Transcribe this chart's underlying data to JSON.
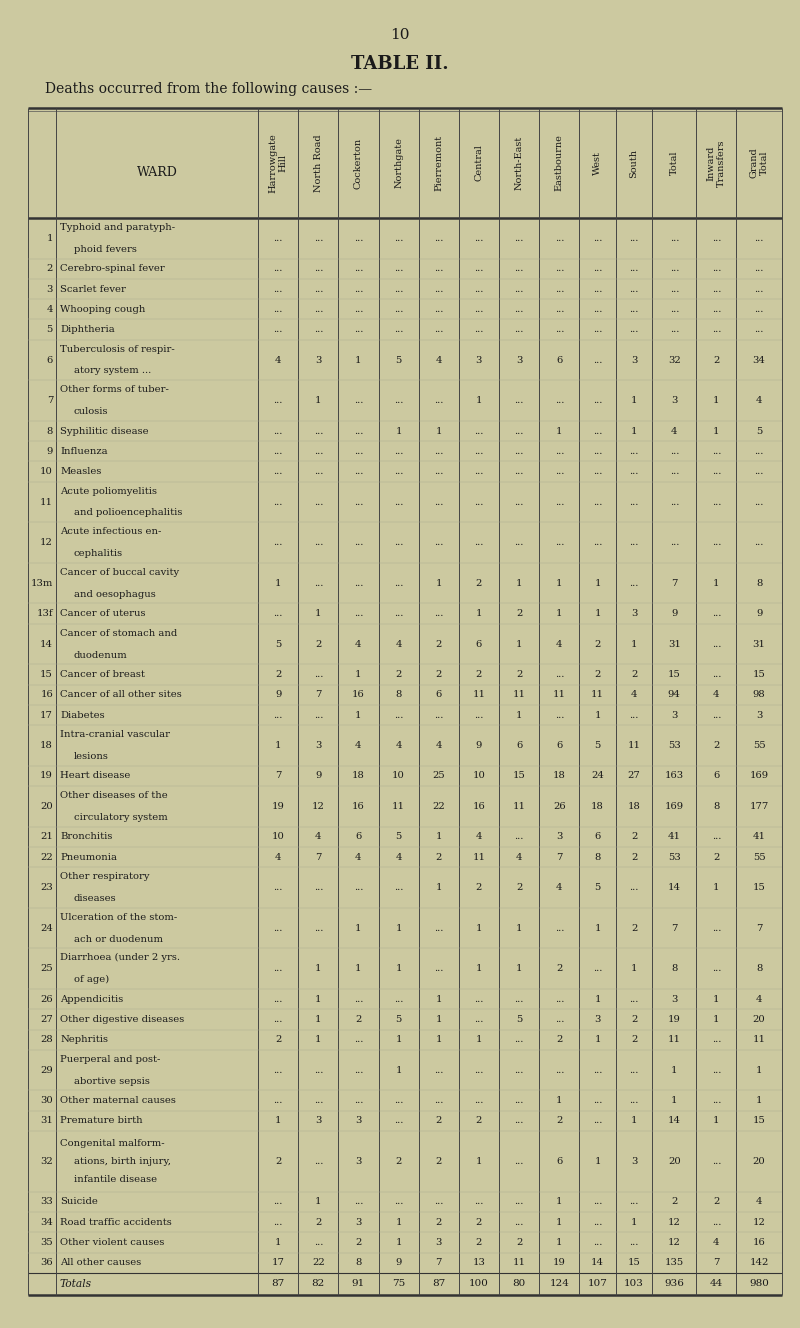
{
  "page_number": "10",
  "title": "TABLE II.",
  "subtitle": "Deaths occurred from the following causes :—",
  "bg_color": "#ccc9a0",
  "text_color": "#1a1a1a",
  "col_headers": [
    "Harrowgate\nHill",
    "North Road",
    "Cockerton",
    "Northgate",
    "Pierremont",
    "Central",
    "North-East",
    "Eastbourne",
    "West",
    "South",
    "Total",
    "Inward\nTransfers",
    "Grand\nTotal"
  ],
  "rows": [
    {
      "num": "1",
      "label1": "Typhoid and paratyph-",
      "label2": "phoid fevers",
      "label3": "",
      "indent2": true,
      "vals": [
        "...",
        "...",
        "...",
        "...",
        "...",
        "...",
        "...",
        "...",
        "...",
        "...",
        "...",
        "...",
        "..."
      ]
    },
    {
      "num": "2",
      "label1": "Cerebro-spinal fever",
      "label2": "",
      "label3": "",
      "indent2": false,
      "vals": [
        "...",
        "...",
        "...",
        "...",
        "...",
        "...",
        "...",
        "...",
        "...",
        "...",
        "...",
        "...",
        "..."
      ]
    },
    {
      "num": "3",
      "label1": "Scarlet fever",
      "label2": "",
      "label3": "",
      "indent2": false,
      "vals": [
        "...",
        "...",
        "...",
        "...",
        "...",
        "...",
        "...",
        "...",
        "...",
        "...",
        "...",
        "...",
        "..."
      ]
    },
    {
      "num": "4",
      "label1": "Whooping cough",
      "label2": "",
      "label3": "",
      "indent2": false,
      "vals": [
        "...",
        "...",
        "...",
        "...",
        "...",
        "...",
        "...",
        "...",
        "...",
        "...",
        "...",
        "...",
        "..."
      ]
    },
    {
      "num": "5",
      "label1": "Diphtheria",
      "label2": "",
      "label3": "",
      "indent2": false,
      "vals": [
        "...",
        "...",
        "...",
        "...",
        "...",
        "...",
        "...",
        "...",
        "...",
        "...",
        "...",
        "...",
        "..."
      ]
    },
    {
      "num": "6",
      "label1": "Tuberculosis of respir-",
      "label2": "atory system ...",
      "label3": "",
      "indent2": true,
      "vals": [
        "4",
        "3",
        "1",
        "5",
        "4",
        "3",
        "3",
        "6",
        "...",
        "3",
        "32",
        "2",
        "34"
      ]
    },
    {
      "num": "7",
      "label1": "Other forms of tuber-",
      "label2": "culosis",
      "label3": "",
      "indent2": true,
      "vals": [
        "...",
        "1",
        "...",
        "...",
        "...",
        "1",
        "...",
        "...",
        "...",
        "1",
        "3",
        "1",
        "4"
      ]
    },
    {
      "num": "8",
      "label1": "Syphilitic disease",
      "label2": "",
      "label3": "",
      "indent2": false,
      "vals": [
        "...",
        "...",
        "...",
        "1",
        "1",
        "...",
        "...",
        "1",
        "...",
        "1",
        "4",
        "1",
        "5"
      ]
    },
    {
      "num": "9",
      "label1": "Influenza",
      "label2": "",
      "label3": "",
      "indent2": false,
      "vals": [
        "...",
        "...",
        "...",
        "...",
        "...",
        "...",
        "...",
        "...",
        "...",
        "...",
        "...",
        "...",
        "..."
      ]
    },
    {
      "num": "10",
      "label1": "Measles",
      "label2": "",
      "label3": "",
      "indent2": false,
      "vals": [
        "...",
        "...",
        "...",
        "...",
        "...",
        "...",
        "...",
        "...",
        "...",
        "...",
        "...",
        "...",
        "..."
      ]
    },
    {
      "num": "11",
      "label1": "Acute poliomyelitis",
      "label2": "and polioencephalitis",
      "label3": "",
      "indent2": true,
      "vals": [
        "...",
        "...",
        "...",
        "...",
        "...",
        "...",
        "...",
        "...",
        "...",
        "...",
        "...",
        "...",
        "..."
      ]
    },
    {
      "num": "12",
      "label1": "Acute infectious en-",
      "label2": "cephalitis",
      "label3": "",
      "indent2": true,
      "vals": [
        "...",
        "...",
        "...",
        "...",
        "...",
        "...",
        "...",
        "...",
        "...",
        "...",
        "...",
        "...",
        "..."
      ]
    },
    {
      "num": "13m",
      "label1": "Cancer of buccal cavity",
      "label2": "and oesophagus",
      "label3": "",
      "indent2": true,
      "vals": [
        "1",
        "...",
        "...",
        "...",
        "1",
        "2",
        "1",
        "1",
        "1",
        "...",
        "7",
        "1",
        "8"
      ]
    },
    {
      "num": "13f",
      "label1": "Cancer of uterus",
      "label2": "",
      "label3": "",
      "indent2": false,
      "vals": [
        "...",
        "1",
        "...",
        "...",
        "...",
        "1",
        "2",
        "1",
        "1",
        "3",
        "9",
        "...",
        "9"
      ]
    },
    {
      "num": "14",
      "label1": "Cancer of stomach and",
      "label2": "duodenum",
      "label3": "",
      "indent2": true,
      "vals": [
        "5",
        "2",
        "4",
        "4",
        "2",
        "6",
        "1",
        "4",
        "2",
        "1",
        "31",
        "...",
        "31"
      ]
    },
    {
      "num": "15",
      "label1": "Cancer of breast",
      "label2": "",
      "label3": "",
      "indent2": false,
      "vals": [
        "2",
        "...",
        "1",
        "2",
        "2",
        "2",
        "2",
        "...",
        "2",
        "2",
        "15",
        "...",
        "15"
      ]
    },
    {
      "num": "16",
      "label1": "Cancer of all other sites",
      "label2": "",
      "label3": "",
      "indent2": false,
      "vals": [
        "9",
        "7",
        "16",
        "8",
        "6",
        "11",
        "11",
        "11",
        "11",
        "4",
        "94",
        "4",
        "98"
      ]
    },
    {
      "num": "17",
      "label1": "Diabetes",
      "label2": "",
      "label3": "",
      "indent2": false,
      "vals": [
        "...",
        "...",
        "1",
        "...",
        "...",
        "...",
        "1",
        "...",
        "1",
        "...",
        "3",
        "...",
        "3"
      ]
    },
    {
      "num": "18",
      "label1": "Intra-cranial vascular",
      "label2": "lesions",
      "label3": "",
      "indent2": true,
      "vals": [
        "1",
        "3",
        "4",
        "4",
        "4",
        "9",
        "6",
        "6",
        "5",
        "11",
        "53",
        "2",
        "55"
      ]
    },
    {
      "num": "19",
      "label1": "Heart disease",
      "label2": "",
      "label3": "",
      "indent2": false,
      "vals": [
        "7",
        "9",
        "18",
        "10",
        "25",
        "10",
        "15",
        "18",
        "24",
        "27",
        "163",
        "6",
        "169"
      ]
    },
    {
      "num": "20",
      "label1": "Other diseases of the",
      "label2": "circulatory system",
      "label3": "",
      "indent2": true,
      "vals": [
        "19",
        "12",
        "16",
        "11",
        "22",
        "16",
        "11",
        "26",
        "18",
        "18",
        "169",
        "8",
        "177"
      ]
    },
    {
      "num": "21",
      "label1": "Bronchitis",
      "label2": "",
      "label3": "",
      "indent2": false,
      "vals": [
        "10",
        "4",
        "6",
        "5",
        "1",
        "4",
        "...",
        "3",
        "6",
        "2",
        "41",
        "...",
        "41"
      ]
    },
    {
      "num": "22",
      "label1": "Pneumonia",
      "label2": "",
      "label3": "",
      "indent2": false,
      "vals": [
        "4",
        "7",
        "4",
        "4",
        "2",
        "11",
        "4",
        "7",
        "8",
        "2",
        "53",
        "2",
        "55"
      ]
    },
    {
      "num": "23",
      "label1": "Other respiratory",
      "label2": "diseases",
      "label3": "",
      "indent2": true,
      "vals": [
        "...",
        "...",
        "...",
        "...",
        "1",
        "2",
        "2",
        "4",
        "5",
        "...",
        "14",
        "1",
        "15"
      ]
    },
    {
      "num": "24",
      "label1": "Ulceration of the stom-",
      "label2": "ach or duodenum",
      "label3": "",
      "indent2": true,
      "vals": [
        "...",
        "...",
        "1",
        "1",
        "...",
        "1",
        "1",
        "...",
        "1",
        "2",
        "7",
        "...",
        "7"
      ]
    },
    {
      "num": "25",
      "label1": "Diarrhoea (under 2 yrs.",
      "label2": "of age)",
      "label3": "",
      "indent2": true,
      "vals": [
        "...",
        "1",
        "1",
        "1",
        "...",
        "1",
        "1",
        "2",
        "...",
        "1",
        "8",
        "...",
        "8"
      ]
    },
    {
      "num": "26",
      "label1": "Appendicitis",
      "label2": "",
      "label3": "",
      "indent2": false,
      "vals": [
        "...",
        "1",
        "...",
        "...",
        "1",
        "...",
        "...",
        "...",
        "1",
        "...",
        "3",
        "1",
        "4"
      ]
    },
    {
      "num": "27",
      "label1": "Other digestive diseases",
      "label2": "",
      "label3": "",
      "indent2": false,
      "vals": [
        "...",
        "1",
        "2",
        "5",
        "1",
        "...",
        "5",
        "...",
        "3",
        "2",
        "19",
        "1",
        "20"
      ]
    },
    {
      "num": "28",
      "label1": "Nephritis",
      "label2": "",
      "label3": "",
      "indent2": false,
      "vals": [
        "2",
        "1",
        "...",
        "1",
        "1",
        "1",
        "...",
        "2",
        "1",
        "2",
        "11",
        "...",
        "11"
      ]
    },
    {
      "num": "29",
      "label1": "Puerperal and post-",
      "label2": "abortive sepsis",
      "label3": "",
      "indent2": true,
      "vals": [
        "...",
        "...",
        "...",
        "1",
        "...",
        "...",
        "...",
        "...",
        "...",
        "...",
        "1",
        "...",
        "1"
      ]
    },
    {
      "num": "30",
      "label1": "Other maternal causes",
      "label2": "",
      "label3": "",
      "indent2": false,
      "vals": [
        "...",
        "...",
        "...",
        "...",
        "...",
        "...",
        "...",
        "1",
        "...",
        "...",
        "1",
        "...",
        "1"
      ]
    },
    {
      "num": "31",
      "label1": "Premature birth",
      "label2": "",
      "label3": "",
      "indent2": false,
      "vals": [
        "1",
        "3",
        "3",
        "...",
        "2",
        "2",
        "...",
        "2",
        "...",
        "1",
        "14",
        "1",
        "15"
      ]
    },
    {
      "num": "32",
      "label1": "Congenital malform-",
      "label2": "ations, birth injury,",
      "label3": "infantile disease",
      "indent2": true,
      "vals": [
        "2",
        "...",
        "3",
        "2",
        "2",
        "1",
        "...",
        "6",
        "1",
        "3",
        "20",
        "...",
        "20"
      ]
    },
    {
      "num": "33",
      "label1": "Suicide",
      "label2": "",
      "label3": "",
      "indent2": false,
      "vals": [
        "...",
        "1",
        "...",
        "...",
        "...",
        "...",
        "...",
        "1",
        "...",
        "...",
        "2",
        "2",
        "4"
      ]
    },
    {
      "num": "34",
      "label1": "Road traffic accidents",
      "label2": "",
      "label3": "",
      "indent2": false,
      "vals": [
        "...",
        "2",
        "3",
        "1",
        "2",
        "2",
        "...",
        "1",
        "...",
        "1",
        "12",
        "...",
        "12"
      ]
    },
    {
      "num": "35",
      "label1": "Other violent causes",
      "label2": "",
      "label3": "",
      "indent2": false,
      "vals": [
        "1",
        "...",
        "2",
        "1",
        "3",
        "2",
        "2",
        "1",
        "...",
        "...",
        "12",
        "4",
        "16"
      ]
    },
    {
      "num": "36",
      "label1": "All other causes",
      "label2": "",
      "label3": "",
      "indent2": false,
      "vals": [
        "17",
        "22",
        "8",
        "9",
        "7",
        "13",
        "11",
        "19",
        "14",
        "15",
        "135",
        "7",
        "142"
      ]
    }
  ],
  "totals": [
    "87",
    "82",
    "91",
    "75",
    "87",
    "100",
    "80",
    "124",
    "107",
    "103",
    "936",
    "44",
    "980"
  ]
}
